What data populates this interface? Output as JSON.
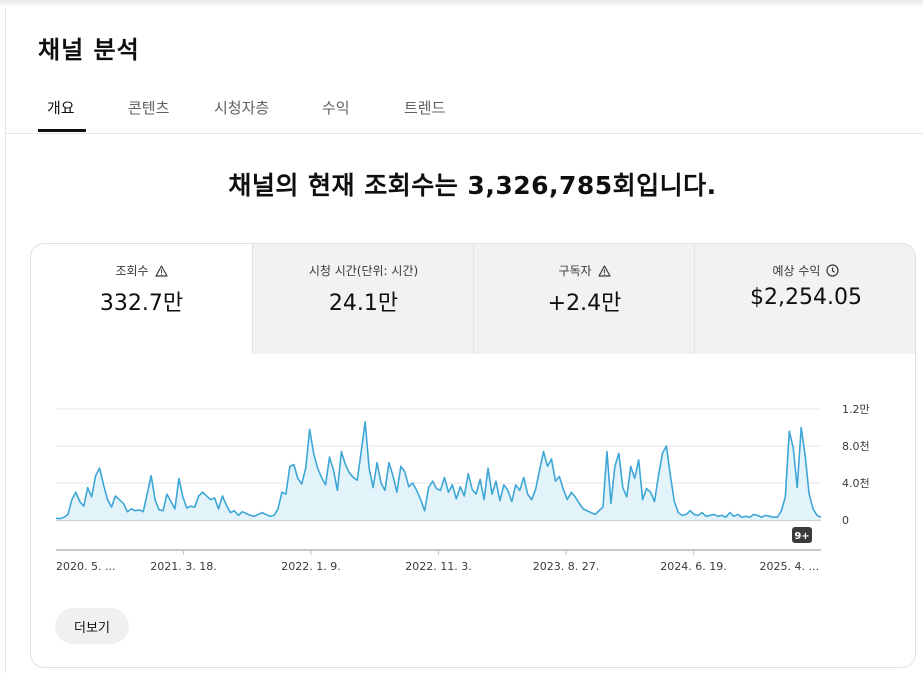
{
  "page": {
    "title": "채널 분석",
    "headline": "채널의 현재 조회수는 3,326,785회입니다."
  },
  "tabs": [
    {
      "label": "개요",
      "active": true
    },
    {
      "label": "콘텐츠",
      "active": false
    },
    {
      "label": "시청자층",
      "active": false
    },
    {
      "label": "수익",
      "active": false
    },
    {
      "label": "트렌드",
      "active": false
    }
  ],
  "metrics": [
    {
      "label": "조회수",
      "value": "332.7만",
      "icon": "warning-icon",
      "selected": true
    },
    {
      "label": "시청 시간(단위: 시간)",
      "value": "24.1만",
      "icon": "",
      "selected": false
    },
    {
      "label": "구독자",
      "value": "+2.4만",
      "icon": "warning-icon",
      "selected": false
    },
    {
      "label": "예상 수익",
      "value": "$2,254.05",
      "icon": "clock-icon",
      "selected": false
    }
  ],
  "more_button": "더보기",
  "colors": {
    "line": "#3ea6d6",
    "fill": "#e3f3fa",
    "grid": "#e6e6e6"
  },
  "chart_data": {
    "type": "area",
    "y_tick_labels": [
      "0",
      "4.0천",
      "8.0천",
      "1.2만"
    ],
    "y_ticks": [
      0,
      4000,
      8000,
      12000
    ],
    "ylim": [
      0,
      12000
    ],
    "x_tick_labels": [
      "2020. 5. ...",
      "2021. 3. 18.",
      "2022. 1. 9.",
      "2022. 11. 3.",
      "2023. 8. 27.",
      "2024. 6. 19.",
      "2025. 4. ..."
    ],
    "badge": "9+",
    "grid": true,
    "series": [
      {
        "values": [
          200,
          150,
          300,
          600,
          2200,
          3000,
          2000,
          1500,
          3500,
          2500,
          4800,
          5600,
          3800,
          2200,
          1400,
          2600,
          2200,
          1800,
          900,
          1200,
          1000,
          1100,
          900,
          2800,
          4800,
          2200,
          1100,
          1000,
          2800,
          2000,
          1200,
          4500,
          2500,
          1300,
          1500,
          1400,
          2600,
          3000,
          2600,
          2200,
          2400,
          1200,
          2600,
          1600,
          800,
          1000,
          500,
          900,
          700,
          500,
          400,
          600,
          800,
          600,
          400,
          500,
          1200,
          3000,
          2800,
          5800,
          6000,
          4500,
          3900,
          5600,
          9800,
          7200,
          5600,
          4600,
          3800,
          6800,
          5400,
          3200,
          7400,
          6000,
          5100,
          4600,
          4300,
          7400,
          10600,
          5600,
          3500,
          6200,
          4000,
          3200,
          6200,
          4800,
          3000,
          5800,
          5200,
          3600,
          4000,
          3200,
          2200,
          1000,
          3500,
          4200,
          3400,
          3200,
          4600,
          3000,
          3800,
          2300,
          3600,
          2600,
          5000,
          3300,
          2800,
          4400,
          2200,
          5600,
          2800,
          4200,
          2100,
          3800,
          3200,
          2000,
          3800,
          3200,
          4600,
          2800,
          2200,
          3300,
          5400,
          7400,
          5800,
          6600,
          4200,
          4700,
          3300,
          2200,
          3000,
          2500,
          1800,
          1200,
          1000,
          800,
          600,
          1000,
          1400,
          7400,
          1800,
          5800,
          7200,
          3500,
          2500,
          5800,
          4500,
          6500,
          2200,
          3400,
          3000,
          2000,
          4800,
          7200,
          8000,
          4800,
          2000,
          800,
          500,
          600,
          1000,
          600,
          500,
          800,
          400,
          500,
          600,
          400,
          500,
          300,
          800,
          400,
          600,
          300,
          400,
          300,
          600,
          500,
          300,
          500,
          400,
          300,
          300,
          1000,
          2500,
          9600,
          7800,
          3500,
          10000,
          7000,
          2800,
          1200,
          500,
          300
        ]
      }
    ]
  }
}
